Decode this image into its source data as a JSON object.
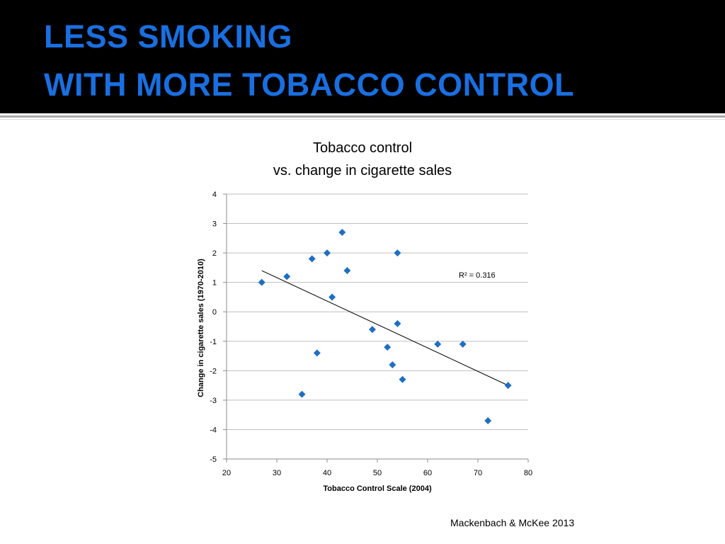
{
  "slide": {
    "title_line1": "LESS SMOKING",
    "title_line2": "WITH MORE TOBACCO CONTROL",
    "source": "Mackenbach & McKee 2013"
  },
  "colors": {
    "header_bg": "#000000",
    "title": "#1a6fe0",
    "marker": "#1f6fc1",
    "trendline": "#000000",
    "grid": "#bfbfbf"
  },
  "chart_data": {
    "type": "scatter",
    "title_line1": "Tobacco control",
    "title_line2": "vs. change in cigarette sales",
    "xlabel": "Tobacco Control Scale (2004)",
    "ylabel": "Change in cigarette sales (1970-2010)",
    "xlim": [
      20,
      80
    ],
    "ylim": [
      -5,
      4
    ],
    "xticks": [
      20,
      30,
      40,
      50,
      60,
      70,
      80
    ],
    "yticks": [
      -5,
      -4,
      -3,
      -2,
      -1,
      0,
      1,
      2,
      3,
      4
    ],
    "grid": "horizontal",
    "marker": "diamond",
    "points": [
      {
        "x": 27,
        "y": 1.0
      },
      {
        "x": 32,
        "y": 1.2
      },
      {
        "x": 35,
        "y": -2.8
      },
      {
        "x": 37,
        "y": 1.8
      },
      {
        "x": 38,
        "y": -1.4
      },
      {
        "x": 40,
        "y": 2.0
      },
      {
        "x": 41,
        "y": 0.5
      },
      {
        "x": 43,
        "y": 2.7
      },
      {
        "x": 44,
        "y": 1.4
      },
      {
        "x": 49,
        "y": -0.6
      },
      {
        "x": 52,
        "y": -1.2
      },
      {
        "x": 53,
        "y": -1.8
      },
      {
        "x": 54,
        "y": 2.0
      },
      {
        "x": 54,
        "y": -0.4
      },
      {
        "x": 55,
        "y": -2.3
      },
      {
        "x": 62,
        "y": -1.1
      },
      {
        "x": 67,
        "y": -1.1
      },
      {
        "x": 72,
        "y": -3.7
      },
      {
        "x": 76,
        "y": -2.5
      }
    ],
    "trendline": {
      "x": [
        27,
        76
      ],
      "y": [
        1.4,
        -2.5
      ]
    },
    "annotation": "R² = 0.316"
  }
}
